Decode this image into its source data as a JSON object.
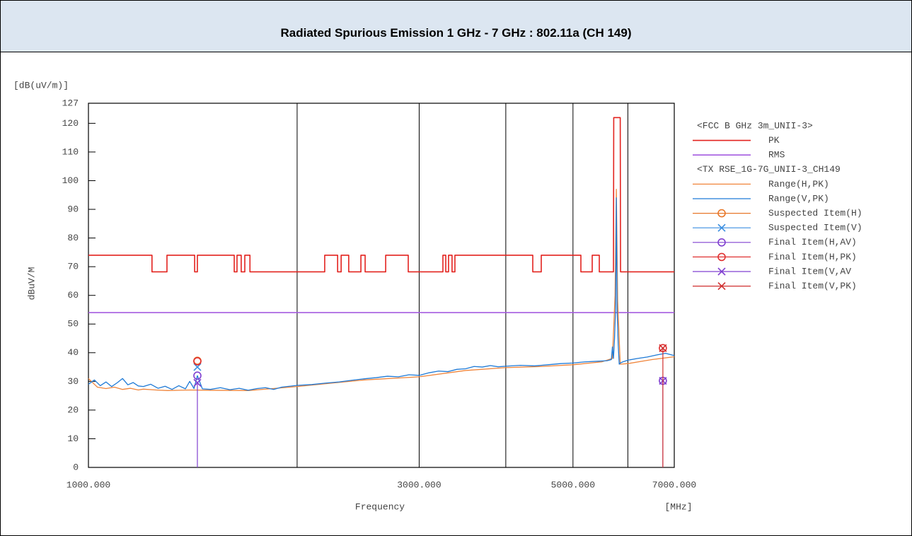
{
  "chart_data": {
    "type": "line",
    "title": "Radiated Spurious Emission 1 GHz - 7 GHz : 802.11a (CH 149)",
    "y_unit": "[dB(uV/m)]",
    "ylabel": "dBuV/M",
    "xlabel": "Frequency",
    "x_unit": "[MHz]",
    "xlog": true,
    "xlim": [
      1000,
      7000
    ],
    "xticks": [
      {
        "value": 1000,
        "label": "1000.000"
      },
      {
        "value": 2000,
        "label": null
      },
      {
        "value": 3000,
        "label": "3000.000"
      },
      {
        "value": 4000,
        "label": null
      },
      {
        "value": 5000,
        "label": "5000.000"
      },
      {
        "value": 6000,
        "label": null
      },
      {
        "value": 7000,
        "label": "7000.000"
      }
    ],
    "ylim": [
      0,
      127
    ],
    "yticks": [
      0,
      10,
      20,
      30,
      40,
      50,
      60,
      70,
      80,
      90,
      100,
      110,
      120,
      127
    ],
    "grid": true,
    "legend_headers": [
      "<FCC B GHz 3m_UNII-3>",
      "<TX RSE_1G-7G_UNII-3_CH149"
    ],
    "series": [
      {
        "name": "PK",
        "color": "#e3231f",
        "x": [
          1000,
          1235,
          1235,
          1298,
          1298,
          1423,
          1423,
          1436,
          1436,
          1623,
          1623,
          1638,
          1638,
          1661,
          1661,
          1681,
          1681,
          1710,
          1710,
          2192,
          2192,
          2288,
          2288,
          2315,
          2315,
          2374,
          2374,
          2472,
          2472,
          2507,
          2507,
          2684,
          2684,
          2893,
          2893,
          3246,
          3246,
          3277,
          3277,
          3307,
          3307,
          3346,
          3346,
          3378,
          3378,
          4375,
          4375,
          4500,
          4500,
          5133,
          5133,
          5330,
          5330,
          5457,
          5457,
          5720,
          5725,
          5850,
          5856,
          7000
        ],
        "values": [
          74,
          74,
          68.2,
          68.2,
          74,
          74,
          68.2,
          68.2,
          74,
          74,
          68.2,
          68.2,
          74,
          74,
          68.2,
          68.2,
          74,
          74,
          68.2,
          68.2,
          74,
          74,
          68.2,
          68.2,
          74,
          74,
          68.2,
          68.2,
          74,
          74,
          68.2,
          68.2,
          74,
          74,
          68.2,
          68.2,
          74,
          74,
          68.2,
          68.2,
          74,
          74,
          68.2,
          68.2,
          74,
          74,
          68.2,
          68.2,
          74,
          74,
          68.2,
          68.2,
          74,
          74,
          68.2,
          68.2,
          122,
          122,
          68.2,
          68.2
        ]
      },
      {
        "name": "RMS",
        "color": "#a55be0",
        "x": [
          1000,
          7000
        ],
        "values": [
          54,
          54
        ]
      },
      {
        "name": "Range(H,PK)",
        "color": "#f0843a",
        "x": [
          1000,
          1030,
          1060,
          1090,
          1120,
          1150,
          1180,
          1200,
          1250,
          1300,
          1400,
          1500,
          1700,
          2000,
          2500,
          3000,
          3500,
          4000,
          4500,
          5000,
          5500,
          5700,
          5750,
          5775,
          5800,
          5850,
          6000,
          6500,
          7000
        ],
        "values": [
          31,
          28,
          27.5,
          28,
          27.2,
          27.6,
          27,
          27.3,
          27,
          26.8,
          27,
          26.9,
          26.8,
          28.2,
          30.5,
          31.6,
          33.8,
          34.8,
          35.2,
          35.8,
          36.8,
          38,
          60,
          97,
          58,
          36,
          36.2,
          37.6,
          38.6
        ]
      },
      {
        "name": "Range(V,PK)",
        "color": "#1f7ad6",
        "x": [
          1000,
          1020,
          1040,
          1060,
          1080,
          1100,
          1120,
          1140,
          1160,
          1180,
          1200,
          1230,
          1260,
          1290,
          1320,
          1350,
          1380,
          1400,
          1420,
          1436,
          1460,
          1500,
          1550,
          1600,
          1650,
          1700,
          1750,
          1800,
          1850,
          1900,
          1950,
          2000,
          2100,
          2200,
          2300,
          2400,
          2500,
          2600,
          2700,
          2800,
          2900,
          3000,
          3100,
          3200,
          3300,
          3400,
          3500,
          3600,
          3700,
          3800,
          3900,
          4000,
          4200,
          4400,
          4600,
          4800,
          5000,
          5200,
          5400,
          5600,
          5680,
          5700,
          5720,
          5740,
          5760,
          5775,
          5790,
          5810,
          5830,
          5850,
          5900,
          6000,
          6200,
          6400,
          6600,
          6800,
          7000
        ],
        "values": [
          29,
          30.5,
          28.5,
          29.8,
          28.2,
          29.5,
          31,
          28.8,
          29.6,
          28.4,
          28.2,
          29,
          27.6,
          28.3,
          27.2,
          28.5,
          27.4,
          30,
          27.5,
          32,
          27.4,
          27.2,
          27.8,
          27.1,
          27.6,
          26.9,
          27.5,
          27.8,
          27.2,
          28,
          28.3,
          28.6,
          28.9,
          29.4,
          29.8,
          30.4,
          30.9,
          31.3,
          31.8,
          31.6,
          32.3,
          32.1,
          33,
          33.6,
          33.4,
          34.2,
          34.4,
          35.2,
          35,
          35.5,
          35.1,
          35.3,
          35.6,
          35.4,
          35.8,
          36.2,
          36.4,
          36.8,
          37,
          37.2,
          37.6,
          42,
          38,
          45,
          55,
          94,
          55,
          43,
          36,
          36.4,
          36.8,
          37.4,
          38,
          38.5,
          39.2,
          39.8,
          39
        ]
      },
      {
        "name": "Suspected Item(H)",
        "color": "#e8782a",
        "marker": "circle",
        "x": [
          1436
        ],
        "values": [
          37.2
        ]
      },
      {
        "name": "Suspected Item(V)",
        "color": "#3a8ee0",
        "marker": "x",
        "x": [
          1436
        ],
        "values": [
          35
        ]
      },
      {
        "name": "Final Item(H,AV)",
        "color": "#8040d0",
        "marker": "circle",
        "x": [
          1436,
          6740
        ],
        "values": [
          32,
          30.2
        ]
      },
      {
        "name": "Final Item(H,PK)",
        "color": "#e03030",
        "marker": "circle",
        "x": [
          1436,
          6740
        ],
        "values": [
          37,
          41.6
        ]
      },
      {
        "name": "Final Item(V,AV",
        "color": "#8040d0",
        "marker": "x",
        "stem": true,
        "x": [
          1436,
          6740
        ],
        "values": [
          29.5,
          30.2
        ]
      },
      {
        "name": "Final Item(V,PK)",
        "color": "#d03030",
        "marker": "x",
        "stem": true,
        "x": [
          6740
        ],
        "values": [
          41.6
        ]
      }
    ]
  }
}
